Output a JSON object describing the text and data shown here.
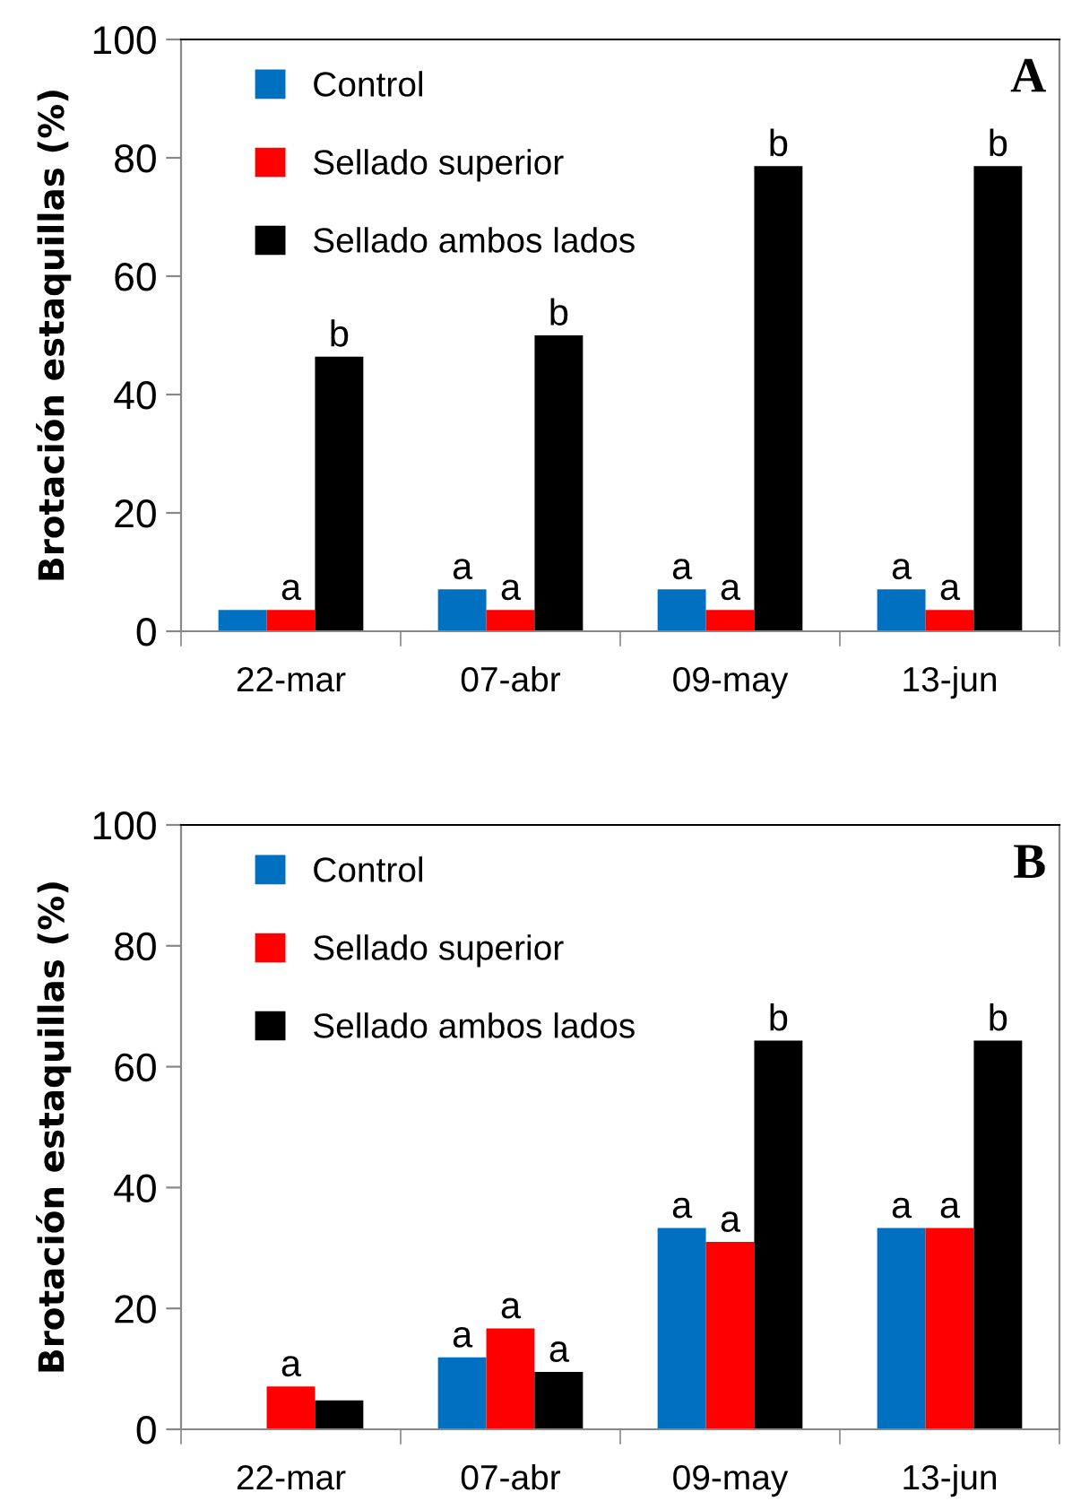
{
  "chart_data": [
    {
      "type": "bar",
      "ylabel": "Brotación estaquillas (%)",
      "annotations": [
        "A"
      ],
      "categories": [
        "22-mar",
        "07-abr",
        "09-may",
        "13-jun"
      ],
      "ylim": [
        0,
        100
      ],
      "yticks": [
        0,
        20,
        40,
        60,
        80,
        100
      ],
      "legend": "top left",
      "grid": false,
      "series": [
        {
          "name": "Control",
          "color": "#0070c0",
          "values": [
            3.6,
            7.1,
            7.1,
            7.1
          ],
          "value_labels": [
            null,
            "a",
            "a",
            "a"
          ]
        },
        {
          "name": "Sellado superior",
          "color": "#ff0000",
          "values": [
            3.6,
            3.6,
            3.6,
            3.6
          ],
          "value_labels": [
            "a",
            "a",
            "a",
            "a"
          ]
        },
        {
          "name": "Sellado ambos lados",
          "color": "#000000",
          "values": [
            46.4,
            50.0,
            78.6,
            78.6
          ],
          "value_labels": [
            "b",
            "b",
            "b",
            "b"
          ]
        }
      ]
    },
    {
      "type": "bar",
      "ylabel": "Brotación estaquillas (%)",
      "annotations": [
        "B"
      ],
      "categories": [
        "22-mar",
        "07-abr",
        "09-may",
        "13-jun"
      ],
      "ylim": [
        0,
        100
      ],
      "yticks": [
        0,
        20,
        40,
        60,
        80,
        100
      ],
      "legend": "top left",
      "grid": false,
      "series": [
        {
          "name": "Control",
          "color": "#0070c0",
          "values": [
            0,
            11.9,
            33.3,
            33.3
          ],
          "value_labels": [
            null,
            "a",
            "a",
            "a"
          ]
        },
        {
          "name": "Sellado superior",
          "color": "#ff0000",
          "values": [
            7.1,
            16.7,
            31.0,
            33.3
          ],
          "value_labels": [
            "a",
            "a",
            "a",
            "a"
          ]
        },
        {
          "name": "Sellado ambos lados",
          "color": "#000000",
          "values": [
            4.8,
            9.5,
            64.3,
            64.3
          ],
          "value_labels": [
            null,
            "a",
            "b",
            "b"
          ]
        }
      ]
    }
  ]
}
